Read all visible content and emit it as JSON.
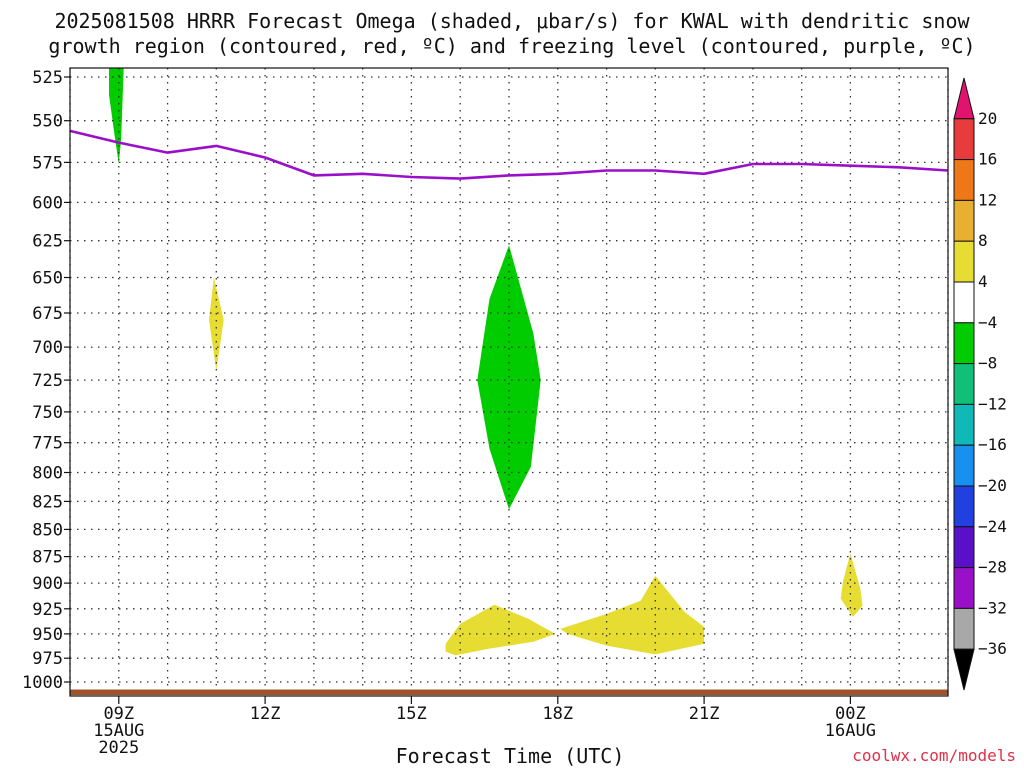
{
  "chart_data": {
    "type": "heatmap",
    "title_line1": "2025081508 HRRR Forecast Omega (shaded, μbar/s) for KWAL with dendritic snow",
    "title_line2": "growth region (contoured, red, ºC) and freezing level (contoured, purple, ºC)",
    "xlabel": "Forecast Time (UTC)",
    "ylabel": "",
    "credit": "coolwx.com/models",
    "x_ticks": [
      {
        "hour": 9,
        "label": "09Z",
        "sub1": "15AUG",
        "sub2": "2025"
      },
      {
        "hour": 12,
        "label": "12Z",
        "sub1": "",
        "sub2": ""
      },
      {
        "hour": 15,
        "label": "15Z",
        "sub1": "",
        "sub2": ""
      },
      {
        "hour": 18,
        "label": "18Z",
        "sub1": "",
        "sub2": ""
      },
      {
        "hour": 21,
        "label": "21Z",
        "sub1": "",
        "sub2": ""
      },
      {
        "hour": 24,
        "label": "00Z",
        "sub1": "16AUG",
        "sub2": ""
      }
    ],
    "x_range_hours": [
      8,
      26
    ],
    "y_levels_hpa": [
      525,
      550,
      575,
      600,
      625,
      650,
      675,
      700,
      725,
      750,
      775,
      800,
      825,
      850,
      875,
      900,
      925,
      950,
      975,
      1000
    ],
    "y_range_hpa": [
      520,
      1015
    ],
    "y_scale": "log-pressure",
    "grid": true,
    "freezing_level": {
      "color": "#9a10c8",
      "points": [
        [
          8.0,
          556
        ],
        [
          9.0,
          563
        ],
        [
          10.0,
          569
        ],
        [
          11.0,
          565
        ],
        [
          12.0,
          572
        ],
        [
          13.0,
          583
        ],
        [
          14.0,
          582
        ],
        [
          15.0,
          584
        ],
        [
          16.0,
          585
        ],
        [
          17.0,
          583
        ],
        [
          18.0,
          582
        ],
        [
          19.0,
          580
        ],
        [
          20.0,
          580
        ],
        [
          21.0,
          582
        ],
        [
          22.0,
          576
        ],
        [
          23.0,
          576
        ],
        [
          24.0,
          577
        ],
        [
          25.0,
          578
        ],
        [
          26.0,
          580
        ]
      ]
    },
    "surface_band": {
      "color": "#a0522d",
      "from_hpa": 1008,
      "to_hpa": 1014
    },
    "omega_regions": [
      {
        "color": "#00cc00",
        "range": "-8 to -4",
        "points": [
          [
            8.8,
            520
          ],
          [
            9.1,
            520
          ],
          [
            9.05,
            560
          ],
          [
            9.0,
            576
          ],
          [
            8.92,
            560
          ],
          [
            8.8,
            535
          ]
        ]
      },
      {
        "color": "#e6dc32",
        "range": "4 to 8",
        "points": [
          [
            10.95,
            650
          ],
          [
            11.15,
            680
          ],
          [
            11.0,
            718
          ],
          [
            10.85,
            680
          ]
        ]
      },
      {
        "color": "#00cc00",
        "range": "-8 to -4",
        "points": [
          [
            17.0,
            628
          ],
          [
            17.5,
            690
          ],
          [
            17.65,
            725
          ],
          [
            17.45,
            795
          ],
          [
            17.0,
            832
          ],
          [
            16.6,
            780
          ],
          [
            16.35,
            725
          ],
          [
            16.6,
            665
          ]
        ]
      },
      {
        "color": "#e6dc32",
        "range": "4 to 8",
        "points": [
          [
            15.7,
            960
          ],
          [
            16.0,
            940
          ],
          [
            16.7,
            921
          ],
          [
            17.4,
            935
          ],
          [
            17.95,
            950
          ],
          [
            17.5,
            958
          ],
          [
            16.6,
            965
          ],
          [
            15.9,
            972
          ],
          [
            15.7,
            968
          ]
        ]
      },
      {
        "color": "#e6dc32",
        "range": "4 to 8",
        "points": [
          [
            18.05,
            945
          ],
          [
            19.0,
            930
          ],
          [
            19.7,
            917
          ],
          [
            20.0,
            893
          ],
          [
            20.6,
            928
          ],
          [
            21.0,
            943
          ],
          [
            21.0,
            960
          ],
          [
            20.0,
            971
          ],
          [
            19.0,
            962
          ],
          [
            18.2,
            950
          ]
        ]
      },
      {
        "color": "#e6dc32",
        "range": "4 to 8",
        "points": [
          [
            24.0,
            872
          ],
          [
            24.2,
            905
          ],
          [
            24.25,
            922
          ],
          [
            24.05,
            933
          ],
          [
            23.8,
            915
          ],
          [
            23.85,
            898
          ]
        ]
      }
    ],
    "colorbar": {
      "labels": [
        "20",
        "16",
        "12",
        "8",
        "4",
        "−4",
        "−8",
        "−12",
        "−16",
        "−20",
        "−24",
        "−28",
        "−32",
        "−36"
      ],
      "segments": [
        {
          "from": 20,
          "to": 24,
          "color": "#e0146e"
        },
        {
          "from": 16,
          "to": 20,
          "color": "#e83c3c"
        },
        {
          "from": 12,
          "to": 16,
          "color": "#ee7818"
        },
        {
          "from": 8,
          "to": 12,
          "color": "#e8b030"
        },
        {
          "from": 4,
          "to": 8,
          "color": "#e6dc32"
        },
        {
          "from": -4,
          "to": 4,
          "color": "#ffffff"
        },
        {
          "from": -8,
          "to": -4,
          "color": "#00cc00"
        },
        {
          "from": -12,
          "to": -8,
          "color": "#10c078"
        },
        {
          "from": -16,
          "to": -12,
          "color": "#10b8b8"
        },
        {
          "from": -20,
          "to": -16,
          "color": "#1890f0"
        },
        {
          "from": -24,
          "to": -20,
          "color": "#2040e0"
        },
        {
          "from": -28,
          "to": -24,
          "color": "#5a10c8"
        },
        {
          "from": -32,
          "to": -28,
          "color": "#9a10c8"
        },
        {
          "from": -36,
          "to": -32,
          "color": "#a8a8a8"
        },
        {
          "from": -40,
          "to": -36,
          "color": "#000000"
        }
      ]
    }
  }
}
